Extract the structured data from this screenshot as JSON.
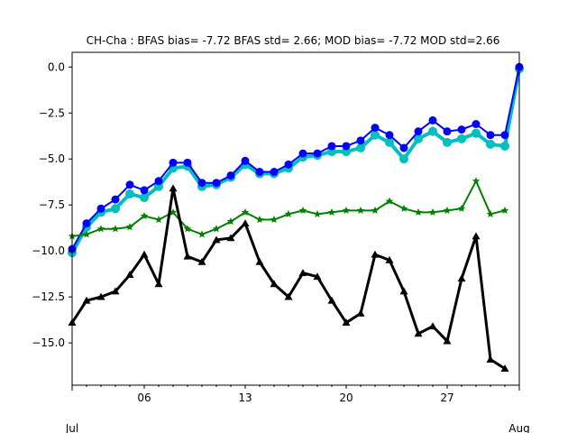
{
  "chart_data": {
    "type": "line",
    "title": "CH-Cha   : BFAS bias= -7.72 BFAS std= 2.66; MOD bias= -7.72 MOD std=2.66",
    "xlabel": "",
    "ylabel": "",
    "x_range": [
      "Jul 1",
      "Aug 1"
    ],
    "ylim": [
      -17.3,
      0.8
    ],
    "grid": false,
    "legend": "none",
    "x_ticks": [
      {
        "day": 6,
        "label": "06"
      },
      {
        "day": 13,
        "label": "13"
      },
      {
        "day": 20,
        "label": "20"
      },
      {
        "day": 27,
        "label": "27"
      }
    ],
    "x_month_labels": [
      {
        "day": 1,
        "label": "Jul"
      },
      {
        "day": 32,
        "label": "Aug"
      }
    ],
    "y_ticks": [
      {
        "value": 0,
        "label": "0.0"
      },
      {
        "value": -2.5,
        "label": "−2.5"
      },
      {
        "value": -5,
        "label": "−5.0"
      },
      {
        "value": -7.5,
        "label": "−7.5"
      },
      {
        "value": -10,
        "label": "−10.0"
      },
      {
        "value": -12.5,
        "label": "−12.5"
      },
      {
        "value": -15,
        "label": "−15.0"
      }
    ],
    "series": [
      {
        "color": "#00bfbf",
        "marker": "circle",
        "width": 4,
        "markersize": 5,
        "x": [
          1,
          2,
          3,
          4,
          5,
          6,
          7,
          8,
          9,
          10,
          11,
          12,
          13,
          14,
          15,
          16,
          17,
          18,
          19,
          20,
          21,
          22,
          23,
          24,
          25,
          26,
          27,
          28,
          29,
          30,
          31,
          32
        ],
        "y": [
          -10.1,
          -8.7,
          -7.9,
          -7.7,
          -6.9,
          -7.1,
          -6.5,
          -5.5,
          -5.4,
          -6.5,
          -6.4,
          -6.0,
          -5.3,
          -5.8,
          -5.8,
          -5.5,
          -4.9,
          -4.8,
          -4.6,
          -4.6,
          -4.4,
          -3.7,
          -4.1,
          -5.0,
          -3.9,
          -3.5,
          -4.1,
          -3.9,
          -3.6,
          -4.2,
          -4.3,
          -0.1
        ]
      },
      {
        "color": "#0000ff",
        "marker": "circle",
        "width": 2,
        "markersize": 4.5,
        "x": [
          1,
          2,
          3,
          4,
          5,
          6,
          7,
          8,
          9,
          10,
          11,
          12,
          13,
          14,
          15,
          16,
          17,
          18,
          19,
          20,
          21,
          22,
          23,
          24,
          25,
          26,
          27,
          28,
          29,
          30,
          31,
          32
        ],
        "y": [
          -9.9,
          -8.5,
          -7.7,
          -7.2,
          -6.4,
          -6.7,
          -6.2,
          -5.2,
          -5.2,
          -6.3,
          -6.3,
          -5.9,
          -5.1,
          -5.7,
          -5.7,
          -5.3,
          -4.7,
          -4.7,
          -4.3,
          -4.3,
          -4.0,
          -3.3,
          -3.7,
          -4.4,
          -3.5,
          -2.9,
          -3.5,
          -3.4,
          -3.1,
          -3.7,
          -3.7,
          0.0
        ]
      },
      {
        "color": "#008000",
        "marker": "star",
        "width": 2,
        "markersize": 4.5,
        "x": [
          1,
          2,
          3,
          4,
          5,
          6,
          7,
          8,
          9,
          10,
          11,
          12,
          13,
          14,
          15,
          16,
          17,
          18,
          19,
          20,
          21,
          22,
          23,
          24,
          25,
          26,
          27,
          28,
          29,
          30,
          31
        ],
        "y": [
          -9.2,
          -9.1,
          -8.8,
          -8.8,
          -8.7,
          -8.1,
          -8.3,
          -7.9,
          -8.8,
          -9.1,
          -8.8,
          -8.4,
          -7.9,
          -8.3,
          -8.3,
          -8.0,
          -7.8,
          -8.0,
          -7.9,
          -7.8,
          -7.8,
          -7.8,
          -7.3,
          -7.7,
          -7.9,
          -7.9,
          -7.8,
          -7.7,
          -6.2,
          -8.0,
          -7.8
        ]
      },
      {
        "color": "#000000",
        "marker": "triangle",
        "width": 3,
        "markersize": 4.5,
        "x": [
          1,
          2,
          3,
          4,
          5,
          6,
          7,
          8,
          9,
          10,
          11,
          12,
          13,
          14,
          15,
          16,
          17,
          18,
          19,
          20,
          21,
          22,
          23,
          24,
          25,
          26,
          27,
          28,
          29,
          30,
          31
        ],
        "y": [
          -13.9,
          -12.7,
          -12.5,
          -12.2,
          -11.3,
          -10.2,
          -11.8,
          -6.6,
          -10.3,
          -10.6,
          -9.4,
          -9.3,
          -8.5,
          -10.6,
          -11.8,
          -12.5,
          -11.2,
          -11.4,
          -12.7,
          -13.9,
          -13.4,
          -10.2,
          -10.5,
          -12.2,
          -14.5,
          -14.1,
          -14.9,
          -11.5,
          -9.2,
          -15.9,
          -16.4
        ]
      }
    ]
  }
}
